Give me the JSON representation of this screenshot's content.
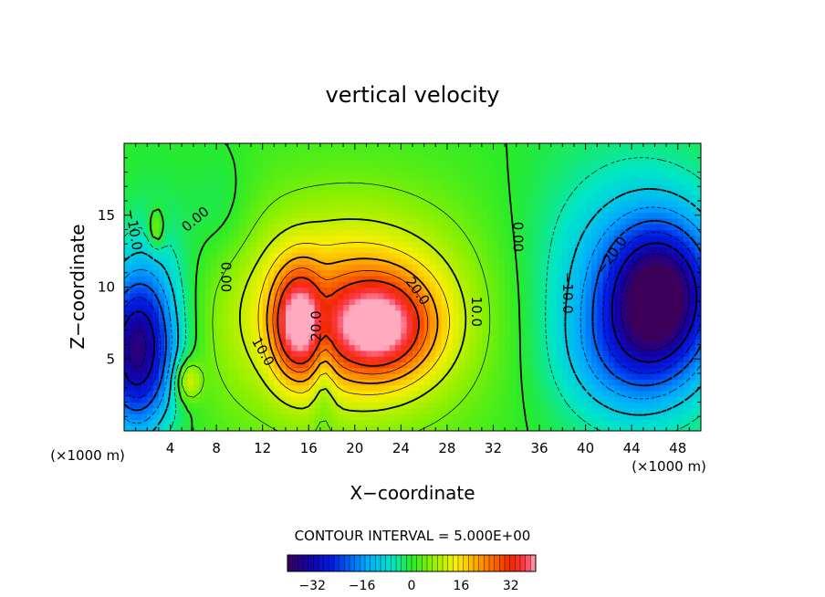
{
  "chart_data": {
    "type": "heatmap",
    "title": "vertical velocity",
    "xlabel": "X−coordinate",
    "ylabel": "Z−coordinate",
    "x_unit_left": "(×1000 m)",
    "x_unit_right": "(×1000 m)",
    "xlim": [
      0,
      50
    ],
    "ylim": [
      0,
      20
    ],
    "x_ticks": [
      4,
      8,
      12,
      16,
      20,
      24,
      28,
      32,
      36,
      40,
      44,
      48
    ],
    "y_ticks": [
      5,
      10,
      15
    ],
    "contour_interval_text": "CONTOUR INTERVAL = 5.000E+00",
    "contour_interval": 5,
    "colorbar": {
      "range": [
        -40,
        40
      ],
      "ticks": [
        -32,
        -16,
        0,
        16,
        32
      ]
    },
    "contour_labels": [
      {
        "text": "−10.0",
        "x": 0.8,
        "y": 14.0,
        "angle": 80
      },
      {
        "text": "0.00",
        "x": 6.2,
        "y": 14.7,
        "angle": -40
      },
      {
        "text": "0.00",
        "x": 8.8,
        "y": 10.7,
        "angle": 90
      },
      {
        "text": "10.0",
        "x": 12.0,
        "y": 5.5,
        "angle": 60
      },
      {
        "text": "20.0",
        "x": 16.7,
        "y": 7.3,
        "angle": -90
      },
      {
        "text": "20.0",
        "x": 25.4,
        "y": 9.7,
        "angle": 55
      },
      {
        "text": "10.0",
        "x": 30.5,
        "y": 8.3,
        "angle": 90
      },
      {
        "text": "0.00",
        "x": 34.1,
        "y": 13.5,
        "angle": 90
      },
      {
        "text": "−10.0",
        "x": 38.4,
        "y": 9.6,
        "angle": 90
      },
      {
        "text": "−20.0",
        "x": 42.3,
        "y": 12.2,
        "angle": -55
      }
    ],
    "field_peaks": [
      {
        "x": 15.0,
        "y": 7.5,
        "value": 26,
        "sx": 1.5,
        "sy": 2.6
      },
      {
        "x": 22.0,
        "y": 7.2,
        "value": 27,
        "sx": 3.2,
        "sy": 2.4
      },
      {
        "x": 19.5,
        "y": 8.5,
        "value": 12,
        "sx": 6.5,
        "sy": 4.2
      },
      {
        "x": 19.5,
        "y": 8.0,
        "value": 10,
        "sx": 9.5,
        "sy": 6.5
      },
      {
        "x": 17.3,
        "y": 5.0,
        "value": -7,
        "sx": 0.7,
        "sy": 3.2
      },
      {
        "x": 1.0,
        "y": 5.5,
        "value": -34,
        "sx": 2.2,
        "sy": 3.8
      },
      {
        "x": 3.0,
        "y": 9.0,
        "value": -8,
        "sx": 2.5,
        "sy": 5.0
      },
      {
        "x": 2.8,
        "y": 14.0,
        "value": 9,
        "sx": 0.5,
        "sy": 1.0
      },
      {
        "x": 5.5,
        "y": 3.5,
        "value": 13,
        "sx": 0.8,
        "sy": 1.0
      },
      {
        "x": 46.5,
        "y": 9.5,
        "value": -32,
        "sx": 3.2,
        "sy": 3.4
      },
      {
        "x": 44.0,
        "y": 10.0,
        "value": -14,
        "sx": 6.0,
        "sy": 6.0
      },
      {
        "x": 44.0,
        "y": 5.0,
        "value": -10,
        "sx": 4.0,
        "sy": 3.0
      },
      {
        "x": 8.5,
        "y": 15.0,
        "value": -4,
        "sx": 2.0,
        "sy": 3.0
      }
    ]
  }
}
